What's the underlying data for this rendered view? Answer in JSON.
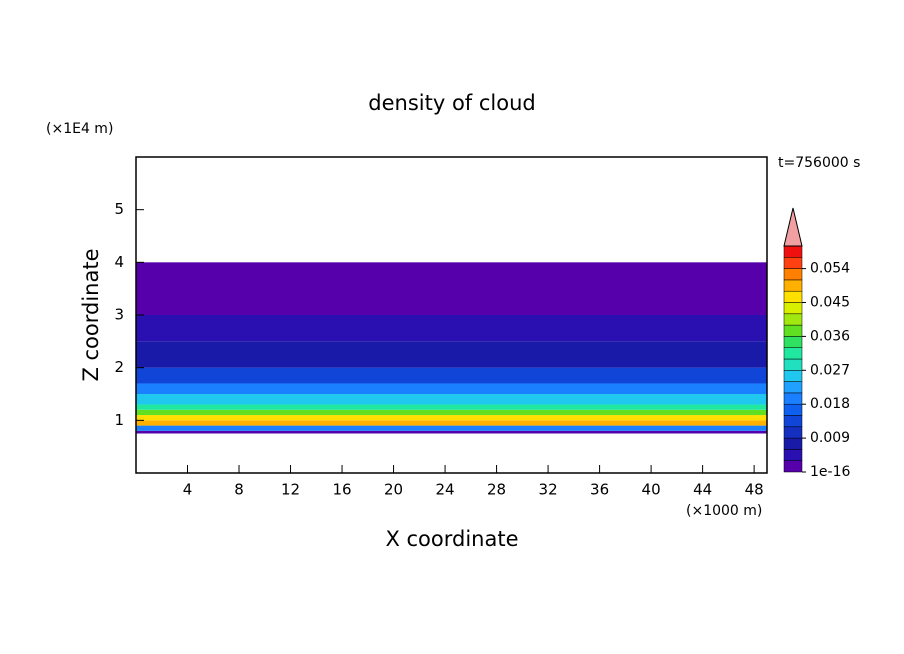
{
  "chart_data": {
    "type": "contour-profile",
    "title": "density of cloud",
    "time_label": "t=756000 s",
    "xlabel": "X coordinate",
    "ylabel": "Z coordinate",
    "x_unit": "(×1000 m)",
    "y_unit": "(×1E4 m)",
    "xlim": [
      0,
      49
    ],
    "ylim": [
      0,
      6
    ],
    "xticks": [
      4,
      8,
      12,
      16,
      20,
      24,
      28,
      32,
      36,
      40,
      44,
      48
    ],
    "yticks": [
      1,
      2,
      3,
      4,
      5
    ],
    "z_edges": [
      0.75,
      0.8,
      0.9,
      1.0,
      1.1,
      1.2,
      1.3,
      1.5,
      1.7,
      2.0,
      2.5,
      3.0,
      4.0
    ],
    "values": [
      0.001,
      0.02,
      0.05,
      0.045,
      0.038,
      0.03,
      0.025,
      0.018,
      0.013,
      0.008,
      0.004,
      0.001
    ],
    "levels": [
      0,
      0.003,
      0.006,
      0.009,
      0.012,
      0.015,
      0.018,
      0.021,
      0.024,
      0.027,
      0.03,
      0.033,
      0.036,
      0.039,
      0.042,
      0.045,
      0.048,
      0.051,
      0.054,
      0.057,
      0.06
    ],
    "colors": [
      "#5500aa",
      "#2a10b0",
      "#1a1aa8",
      "#1530c0",
      "#1045d8",
      "#1060f0",
      "#1a80ff",
      "#20a0ff",
      "#20c8f0",
      "#20e0c0",
      "#20e8a0",
      "#30e060",
      "#60e020",
      "#a0e810",
      "#d8f000",
      "#ffe000",
      "#ffb000",
      "#ff8000",
      "#ff4010",
      "#f01010"
    ],
    "over_color": "#f0a0a0",
    "cticks": [
      1e-16,
      0.009,
      0.018,
      0.027,
      0.036,
      0.045,
      0.054
    ]
  }
}
